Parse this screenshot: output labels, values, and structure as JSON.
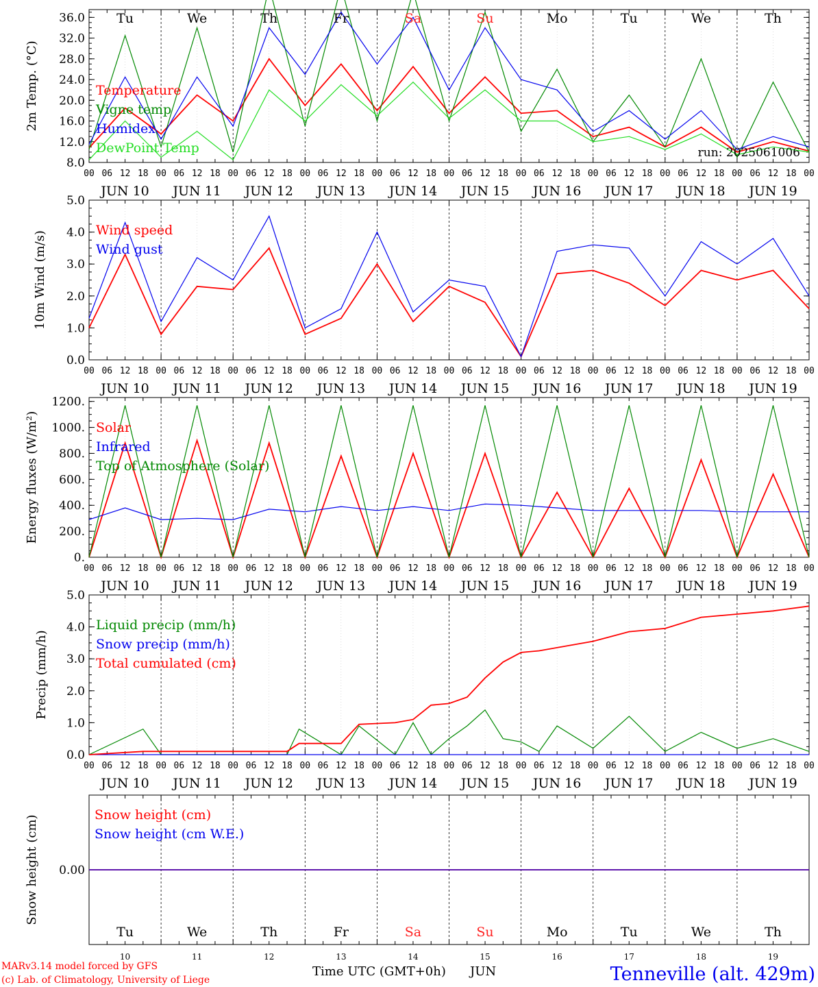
{
  "colors": {
    "red": "#ff0000",
    "green": "#008800",
    "blue": "#0000ee",
    "lime": "#22dd22",
    "black": "#000000",
    "weekend": "#ff2020"
  },
  "days": {
    "names": [
      "Tu",
      "We",
      "Th",
      "Fr",
      "Sa",
      "Su",
      "Mo",
      "Tu",
      "We",
      "Th"
    ],
    "weekend": [
      false,
      false,
      false,
      false,
      true,
      true,
      false,
      false,
      false,
      false
    ],
    "dates": [
      "JUN 10",
      "JUN 11",
      "JUN 12",
      "JUN 13",
      "JUN 14",
      "JUN 15",
      "JUN 16",
      "JUN 17",
      "JUN 18",
      "JUN 19"
    ],
    "numbers": [
      "10",
      "11",
      "12",
      "13",
      "14",
      "15",
      "16",
      "17",
      "18",
      "19"
    ],
    "hour_ticks": [
      "00",
      "06",
      "12",
      "18"
    ],
    "last_tick": "00"
  },
  "footer": {
    "model": "MARv3.14 model forced by GFS",
    "copyright": "(c) Lab. of Climatology, University of Liege",
    "time_label": "Time UTC (GMT+0h)",
    "month": "JUN",
    "location": "Tenneville (alt. 429m)"
  },
  "chart_data": [
    {
      "type": "line",
      "ylabel": "2m Temp. (°C)",
      "ylim": [
        8,
        37.5
      ],
      "yticks": [
        "8.0",
        "12.0",
        "16.0",
        "20.0",
        "24.0",
        "28.0",
        "32.0",
        "36.0"
      ],
      "annotation": "run: 2025061006",
      "x": [
        0,
        12,
        24,
        36,
        48,
        60,
        72,
        84,
        96,
        108,
        120,
        132,
        144,
        156,
        168,
        180,
        192,
        204,
        216,
        228,
        240
      ],
      "series": [
        {
          "name": "Temperature",
          "color": "red",
          "values": [
            10.8,
            18.5,
            13.5,
            21,
            16,
            28,
            19,
            27,
            18,
            26.5,
            17.5,
            24.5,
            17.5,
            18,
            13,
            14.8,
            11,
            14.8,
            10,
            12,
            10.2
          ]
        },
        {
          "name": "Vigne temp",
          "color": "green",
          "values": [
            10.5,
            32.5,
            11,
            34,
            10,
            42,
            15,
            42,
            16,
            41,
            16,
            37,
            14,
            26,
            12,
            21,
            11,
            28,
            9,
            23.5,
            10
          ]
        },
        {
          "name": "Humidex",
          "color": "blue",
          "values": [
            11.5,
            24.5,
            12.5,
            24.5,
            15,
            34,
            25,
            37,
            27,
            36,
            22,
            34,
            24,
            22,
            14,
            18,
            12.5,
            18,
            10.5,
            13,
            11
          ]
        },
        {
          "name": "DewPoint Temp",
          "color": "lime",
          "values": [
            8.5,
            16,
            9,
            14,
            8.5,
            22,
            16,
            23,
            17,
            23.5,
            16.5,
            22,
            16,
            16,
            12,
            13,
            10.5,
            13.5,
            9.5,
            11,
            10
          ]
        }
      ]
    },
    {
      "type": "line",
      "ylabel": "10m Wind (m/s)",
      "ylim": [
        0,
        5
      ],
      "yticks": [
        "0.0",
        "1.0",
        "2.0",
        "3.0",
        "4.0",
        "5.0"
      ],
      "x": [
        0,
        12,
        24,
        36,
        48,
        60,
        72,
        84,
        96,
        108,
        120,
        132,
        144,
        156,
        168,
        180,
        192,
        204,
        216,
        228,
        240
      ],
      "series": [
        {
          "name": "Wind speed",
          "color": "red",
          "values": [
            1.0,
            3.3,
            0.8,
            2.3,
            2.2,
            3.5,
            0.8,
            1.3,
            3.0,
            1.2,
            2.3,
            1.8,
            0.1,
            2.7,
            2.8,
            2.4,
            1.7,
            2.8,
            2.5,
            2.8,
            1.6
          ]
        },
        {
          "name": "Wind gust",
          "color": "blue",
          "values": [
            1.3,
            4.3,
            1.2,
            3.2,
            2.5,
            4.5,
            1.0,
            1.6,
            4.0,
            1.5,
            2.5,
            2.3,
            0.1,
            3.4,
            3.6,
            3.5,
            2.0,
            3.7,
            3.0,
            3.8,
            2.0
          ]
        }
      ]
    },
    {
      "type": "line",
      "ylabel": "Energy fluxes (W/m²)",
      "ylim": [
        0,
        1230
      ],
      "yticks": [
        "0.",
        "200.",
        "400.",
        "600.",
        "800.",
        "1000.",
        "1200."
      ],
      "x": [
        0,
        12,
        24,
        36,
        48,
        60,
        72,
        84,
        96,
        108,
        120,
        132,
        144,
        156,
        168,
        180,
        192,
        204,
        216,
        228,
        240
      ],
      "series": [
        {
          "name": "Solar",
          "color": "red",
          "values": [
            0,
            880,
            0,
            900,
            0,
            880,
            0,
            780,
            0,
            800,
            0,
            800,
            0,
            500,
            0,
            530,
            0,
            750,
            0,
            640,
            0
          ]
        },
        {
          "name": "Infrared",
          "color": "blue",
          "values": [
            290,
            380,
            290,
            300,
            290,
            370,
            350,
            390,
            360,
            390,
            360,
            410,
            400,
            380,
            360,
            360,
            360,
            360,
            350,
            350,
            350
          ]
        },
        {
          "name": "Top of Atmosphere (Solar)",
          "color": "green",
          "values": [
            0,
            1170,
            0,
            1170,
            0,
            1170,
            0,
            1170,
            0,
            1170,
            0,
            1170,
            0,
            1170,
            0,
            1170,
            0,
            1170,
            0,
            1170,
            0
          ]
        }
      ]
    },
    {
      "type": "line",
      "ylabel": "Precip (mm/h)",
      "ylim": [
        0,
        5
      ],
      "yticks": [
        "0.0",
        "1.0",
        "2.0",
        "3.0",
        "4.0",
        "5.0"
      ],
      "x": [
        0,
        18,
        24,
        66,
        70,
        84,
        90,
        102,
        108,
        114,
        120,
        126,
        132,
        138,
        144,
        150,
        156,
        168,
        180,
        192,
        204,
        216,
        228,
        240
      ],
      "series": [
        {
          "name": "Liquid precip (mm/h)",
          "color": "green",
          "values": [
            0,
            0.8,
            0,
            0,
            0.8,
            0,
            0.9,
            0,
            1.0,
            0,
            0.5,
            0.9,
            1.4,
            0.5,
            0.4,
            0.1,
            0.9,
            0.2,
            1.2,
            0.1,
            0.7,
            0.2,
            0.5,
            0.1
          ]
        },
        {
          "name": "Snow precip (mm/h)",
          "color": "blue",
          "values": [
            0,
            0,
            0,
            0,
            0,
            0,
            0,
            0,
            0,
            0,
            0,
            0,
            0,
            0,
            0,
            0,
            0,
            0,
            0,
            0,
            0,
            0,
            0,
            0
          ]
        },
        {
          "name": "Total cumulated (cm)",
          "color": "red",
          "values": [
            0,
            0.1,
            0.1,
            0.1,
            0.35,
            0.35,
            0.95,
            1.0,
            1.1,
            1.55,
            1.6,
            1.8,
            2.4,
            2.9,
            3.2,
            3.25,
            3.35,
            3.55,
            3.85,
            3.95,
            4.3,
            4.4,
            4.5,
            4.65
          ]
        }
      ]
    },
    {
      "type": "line",
      "ylabel": "Snow height (cm)",
      "ylim": [
        -1,
        1
      ],
      "yticks": [
        "0.00"
      ],
      "x": [
        0,
        240
      ],
      "series": [
        {
          "name": "Snow height (cm)",
          "color": "red",
          "values": [
            0,
            0
          ]
        },
        {
          "name": "Snow height (cm W.E.)",
          "color": "blue",
          "values": [
            0,
            0
          ]
        }
      ]
    }
  ]
}
